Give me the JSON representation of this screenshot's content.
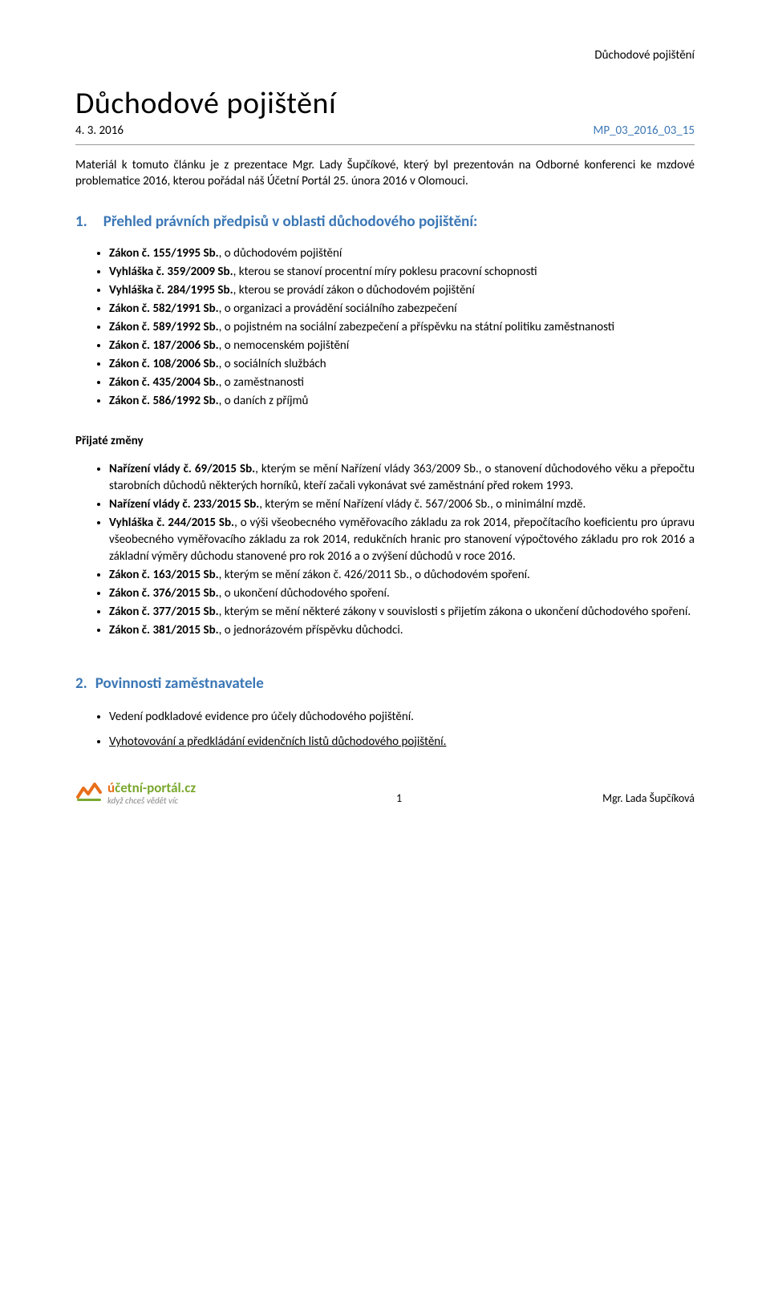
{
  "header": {
    "right": "Důchodové pojištění"
  },
  "title": "Důchodové pojištění",
  "subline": {
    "date": "4. 3. 2016",
    "code": "MP_03_2016_03_15"
  },
  "intro": "Materiál k tomuto článku je z prezentace Mgr. Lady Šupčíkové, který byl prezentován na Odborné konferenci ke mzdové problematice 2016, kterou pořádal náš Účetní Portál 25. února 2016 v Olomouci.",
  "section1": {
    "num": "1.",
    "title": "Přehled právních předpisů v oblasti důchodového pojištění:"
  },
  "list1": [
    {
      "bold": "Zákon č. 155/1995 Sb.",
      "rest": ", o důchodovém pojištění"
    },
    {
      "bold": "Vyhláška č. 359/2009 Sb.",
      "rest": ", kterou se stanoví procentní míry poklesu pracovní schopnosti"
    },
    {
      "bold": "Vyhláška č. 284/1995 Sb.",
      "rest": ", kterou se provádí zákon o důchodovém pojištění"
    },
    {
      "bold": "Zákon č. 582/1991 Sb.",
      "rest": ", o organizaci a provádění sociálního zabezpečení"
    },
    {
      "bold": "Zákon č. 589/1992 Sb.",
      "rest": ", o pojistném na sociální zabezpečení a příspěvku na státní politiku zaměstnanosti"
    },
    {
      "bold": "Zákon č. 187/2006 Sb.",
      "rest": ", o nemocenském pojištění"
    },
    {
      "bold": "Zákon č. 108/2006 Sb.",
      "rest": ", o sociálních službách"
    },
    {
      "bold": "Zákon č. 435/2004 Sb.",
      "rest": ", o zaměstnanosti"
    },
    {
      "bold": "Zákon č. 586/1992 Sb.",
      "rest": ", o daních z příjmů"
    }
  ],
  "subhead": "Přijaté změny",
  "list2": [
    {
      "bold": "Nařízení vlády č. 69/2015 Sb.",
      "rest": ", kterým se mění Nařízení vlády 363/2009 Sb., o stanovení důchodového věku a přepočtu starobních důchodů některých horníků, kteří začali vykonávat své zaměstnání před rokem 1993."
    },
    {
      "bold": "Nařízení vlády č. 233/2015 Sb.",
      "rest": ", kterým se mění Nařízení vlády č. 567/2006 Sb., o minimální mzdě."
    },
    {
      "bold": "Vyhláška č. 244/2015 Sb.",
      "rest": ", o výši všeobecného vyměřovacího základu za rok 2014, přepočítacího koeficientu pro úpravu všeobecného vyměřovacího základu za rok 2014, redukčních hranic pro stanovení výpočtového základu pro rok 2016 a základní výměry důchodu stanovené pro rok 2016 a o zvýšení důchodů v roce 2016."
    },
    {
      "bold": "Zákon č. 163/2015 Sb.",
      "rest": ", kterým se mění zákon č. 426/2011 Sb., o důchodovém spoření."
    },
    {
      "bold": "Zákon č. 376/2015 Sb.",
      "rest": ", o ukončení důchodového spoření."
    },
    {
      "bold": "Zákon č. 377/2015 Sb.",
      "rest": ", kterým se mění některé zákony v souvislosti s přijetím zákona o ukončení důchodového spoření."
    },
    {
      "bold": "Zákon č. 381/2015 Sb.",
      "rest": ", o jednorázovém příspěvku důchodci."
    }
  ],
  "section2": {
    "num": "2.",
    "title": "Povinnosti zaměstnavatele"
  },
  "list3": [
    {
      "text": "Vedení podkladové evidence pro účely důchodového pojištění.",
      "underline": false
    },
    {
      "text": "Vyhotovování a předkládání evidenčních listů důchodového pojištění.",
      "underline": true
    }
  ],
  "footer": {
    "logo": {
      "u": "ú",
      "rest": "četní-portál.cz",
      "tagline": "když chceš vědět víc"
    },
    "pagenum": "1",
    "author": "Mgr. Lada Šupčíková"
  },
  "colors": {
    "heading": "#3b77b5",
    "logo_orange": "#e86f1b",
    "logo_green": "#7aa82e",
    "text": "#000000",
    "background": "#ffffff"
  }
}
